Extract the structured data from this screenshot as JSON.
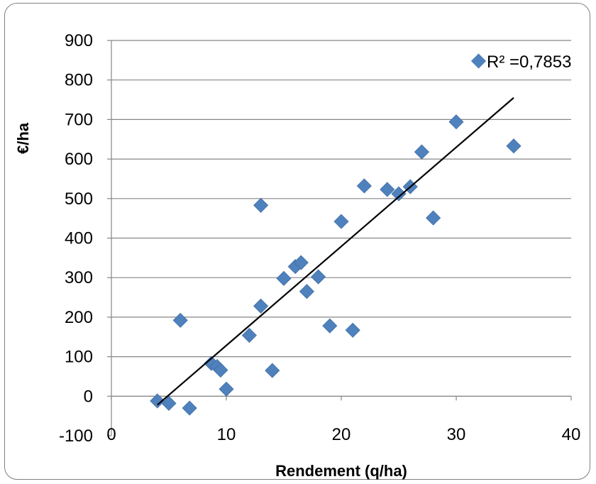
{
  "chart_data": {
    "type": "scatter",
    "xlabel": "Rendement (q/ha)",
    "ylabel": "€/ha",
    "xlim": [
      0,
      40
    ],
    "ylim": [
      -100,
      900
    ],
    "x_ticks": [
      "0",
      "10",
      "20",
      "30",
      "40"
    ],
    "y_ticks": [
      "-100",
      "0",
      "100",
      "200",
      "300",
      "400",
      "500",
      "600",
      "700",
      "800",
      "900"
    ],
    "grid": "horizontal",
    "legend_position": "top-right",
    "legend_label": "R² =0,7853",
    "marker_color": "#4f81bd",
    "trendline": {
      "x": [
        4,
        35
      ],
      "y": [
        -22,
        755
      ]
    },
    "points": [
      {
        "x": 4,
        "y": -12
      },
      {
        "x": 5,
        "y": -18
      },
      {
        "x": 6,
        "y": 192
      },
      {
        "x": 6.8,
        "y": -30
      },
      {
        "x": 8.7,
        "y": 83
      },
      {
        "x": 9.2,
        "y": 75
      },
      {
        "x": 9.5,
        "y": 66
      },
      {
        "x": 10,
        "y": 18
      },
      {
        "x": 12,
        "y": 154
      },
      {
        "x": 13,
        "y": 228
      },
      {
        "x": 13,
        "y": 483
      },
      {
        "x": 14,
        "y": 65
      },
      {
        "x": 15,
        "y": 298
      },
      {
        "x": 16,
        "y": 328
      },
      {
        "x": 16.5,
        "y": 338
      },
      {
        "x": 17,
        "y": 265
      },
      {
        "x": 18,
        "y": 302
      },
      {
        "x": 19,
        "y": 178
      },
      {
        "x": 20,
        "y": 442
      },
      {
        "x": 21,
        "y": 167
      },
      {
        "x": 22,
        "y": 532
      },
      {
        "x": 24,
        "y": 523
      },
      {
        "x": 25,
        "y": 512
      },
      {
        "x": 26,
        "y": 530
      },
      {
        "x": 27,
        "y": 618
      },
      {
        "x": 28,
        "y": 451
      },
      {
        "x": 30,
        "y": 694
      },
      {
        "x": 35,
        "y": 633
      }
    ]
  }
}
